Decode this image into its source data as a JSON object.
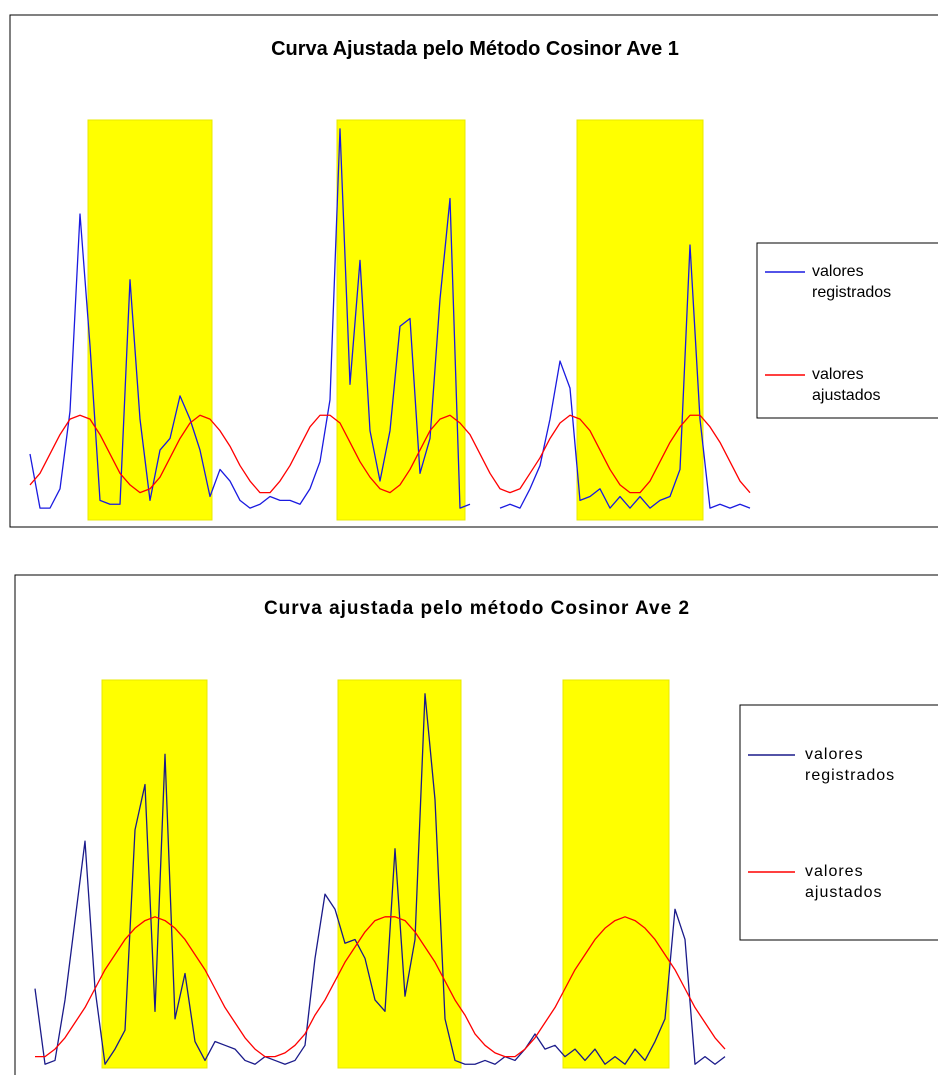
{
  "chart_data": [
    {
      "type": "line",
      "title": "Curva Ajustada pelo Método Cosinor Ave 1",
      "legend": "right",
      "ylim": [
        0,
        100
      ],
      "xlim": [
        0,
        72
      ],
      "band_color": "#ffff00",
      "bands": [
        {
          "start": 5.8,
          "end": 18.2
        },
        {
          "start": 30.7,
          "end": 43.5
        },
        {
          "start": 54.7,
          "end": 67.3
        }
      ],
      "series": [
        {
          "name": "valores registrados",
          "color": "#1a1ae0",
          "values": [
            15,
            1,
            1,
            6,
            26,
            77,
            43,
            3,
            2,
            2,
            60,
            24,
            3,
            16,
            19,
            30,
            24,
            16,
            4,
            11,
            8,
            3,
            1,
            2,
            4,
            3,
            3,
            2,
            6,
            13,
            29,
            99,
            33,
            65,
            21,
            8,
            21,
            48,
            50,
            10,
            19,
            55,
            81,
            1,
            2,
            null,
            null,
            1,
            2,
            1,
            6,
            12,
            24,
            39,
            32,
            3,
            4,
            6,
            1,
            4,
            1,
            4,
            1,
            3,
            4,
            11,
            69,
            24,
            1,
            2,
            1,
            2,
            1
          ]
        },
        {
          "name": "valores ajustados",
          "color": "#ff0000",
          "values": [
            7,
            10,
            15,
            20,
            24,
            25,
            24,
            20,
            15,
            10,
            7,
            5,
            6,
            9,
            14,
            19,
            23,
            25,
            24,
            21,
            17,
            12,
            8,
            5,
            5,
            8,
            12,
            17,
            22,
            25,
            25,
            23,
            18,
            13,
            9,
            6,
            5,
            7,
            11,
            16,
            21,
            24,
            25,
            23,
            20,
            15,
            10,
            6,
            5,
            6,
            10,
            14,
            19,
            23,
            25,
            24,
            21,
            16,
            11,
            7,
            5,
            5,
            8,
            13,
            18,
            22,
            25,
            25,
            22,
            18,
            13,
            8,
            5
          ]
        }
      ]
    },
    {
      "type": "line",
      "title": "Curva ajustada pelo método Cosinor Ave 2",
      "legend": "right",
      "ylim": [
        0,
        100
      ],
      "xlim": [
        0,
        69
      ],
      "band_color": "#ffff00",
      "bands": [
        {
          "start": 6.7,
          "end": 17.2
        },
        {
          "start": 30.3,
          "end": 42.6
        },
        {
          "start": 52.8,
          "end": 63.4
        }
      ],
      "series": [
        {
          "name": "valores registrados",
          "color": "#1a1a8a",
          "values": [
            21,
            1,
            2,
            18,
            39,
            60,
            21,
            1,
            5,
            10,
            63,
            75,
            15,
            83,
            13,
            25,
            7,
            2,
            7,
            6,
            5,
            2,
            1,
            3,
            2,
            1,
            2,
            6,
            29,
            46,
            42,
            33,
            34,
            29,
            18,
            15,
            58,
            19,
            34,
            99,
            71,
            13,
            2,
            1,
            1,
            2,
            1,
            3,
            2,
            5,
            9,
            5,
            6,
            3,
            5,
            2,
            5,
            1,
            3,
            1,
            5,
            2,
            7,
            13,
            42,
            34,
            1,
            3,
            1,
            3
          ]
        },
        {
          "name": "valores ajustados",
          "color": "#ff0000",
          "values": [
            3,
            3,
            5,
            8,
            12,
            16,
            21,
            26,
            30,
            34,
            37,
            39,
            40,
            39,
            37,
            34,
            30,
            26,
            21,
            16,
            12,
            8,
            5,
            3,
            3,
            4,
            6,
            9,
            14,
            18,
            23,
            28,
            32,
            36,
            39,
            40,
            40,
            39,
            36,
            32,
            28,
            23,
            18,
            14,
            9,
            6,
            4,
            3,
            3,
            5,
            8,
            12,
            16,
            21,
            26,
            30,
            34,
            37,
            39,
            40,
            39,
            37,
            34,
            30,
            26,
            21,
            16,
            12,
            8,
            5
          ]
        }
      ]
    }
  ]
}
